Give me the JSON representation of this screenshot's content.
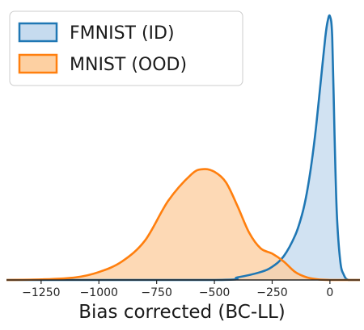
{
  "chart_data": {
    "type": "area",
    "xlabel": "Bias corrected (BC-LL)",
    "ylabel": "",
    "xlim": [
      -1400,
      130
    ],
    "ylim": [
      0,
      1
    ],
    "xticks": [
      -1250,
      -1000,
      -750,
      -500,
      -250,
      0
    ],
    "xtick_labels": [
      "−1250",
      "−1000",
      "−750",
      "−500",
      "−250",
      "0"
    ],
    "grid": false,
    "legend_position": "top-left",
    "series": [
      {
        "name": "FMNIST (ID)",
        "color": "#1f77b4",
        "fill": "#c6dbef",
        "x": [
          -1400,
          -500,
          -400,
          -300,
          -250,
          -200,
          -150,
          -120,
          -100,
          -80,
          -60,
          -40,
          -20,
          -10,
          0,
          10,
          20,
          30,
          45,
          60,
          80,
          130
        ],
        "y": [
          0,
          0,
          0.01,
          0.03,
          0.05,
          0.09,
          0.17,
          0.25,
          0.33,
          0.44,
          0.58,
          0.75,
          0.92,
          0.98,
          1.0,
          0.92,
          0.55,
          0.25,
          0.07,
          0.02,
          0,
          0
        ]
      },
      {
        "name": "MNIST (OOD)",
        "color": "#ff7f0e",
        "fill": "#fdd0a2",
        "x": [
          -1400,
          -1250,
          -1100,
          -1000,
          -900,
          -800,
          -700,
          -600,
          -550,
          -500,
          -450,
          -400,
          -350,
          -300,
          -250,
          -200,
          -150,
          -100,
          -50,
          0,
          50,
          130
        ],
        "y": [
          0,
          0.002,
          0.01,
          0.03,
          0.07,
          0.15,
          0.3,
          0.4,
          0.42,
          0.41,
          0.37,
          0.28,
          0.18,
          0.12,
          0.1,
          0.07,
          0.03,
          0.01,
          0.002,
          0,
          0,
          0
        ]
      }
    ]
  }
}
